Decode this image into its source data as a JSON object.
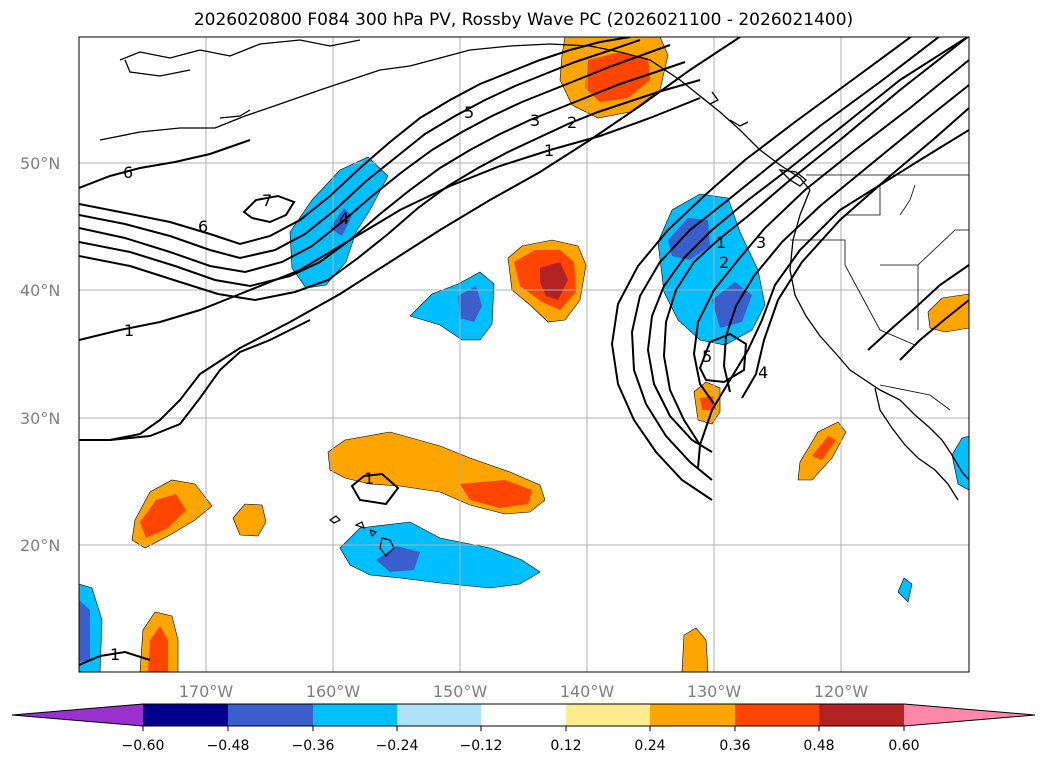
{
  "title": "2026020800 F084 300 hPa PV, Rossby Wave PC (2026021100 - 2026021400)",
  "map": {
    "lon_range": [
      -180,
      -110
    ],
    "lat_range": [
      10,
      60
    ],
    "lat_ticks": [
      "50°N",
      "40°N",
      "30°N",
      "20°N"
    ],
    "lon_ticks": [
      "170°W",
      "160°W",
      "150°W",
      "140°W",
      "130°W",
      "120°W"
    ],
    "contour_labels": [
      "6",
      "7",
      "6",
      "4",
      "1",
      "5",
      "3",
      "2",
      "1",
      "1",
      "2",
      "3",
      "5",
      "4",
      "1",
      "1"
    ],
    "gridline_color": "#b0b0b0",
    "contour_color": "#000000"
  },
  "colorbar": {
    "colors": [
      "#9932cc",
      "#00008b",
      "#3a5fcd",
      "#00bfff",
      "#ade2f8",
      "#ffffff",
      "#ffed8f",
      "#ffa500",
      "#ff4500",
      "#b22222",
      "#ff88aa"
    ],
    "tick_labels": [
      "−0.60",
      "−0.48",
      "−0.36",
      "−0.24",
      "−0.12",
      "0.12",
      "0.24",
      "0.36",
      "0.48",
      "0.60"
    ]
  }
}
